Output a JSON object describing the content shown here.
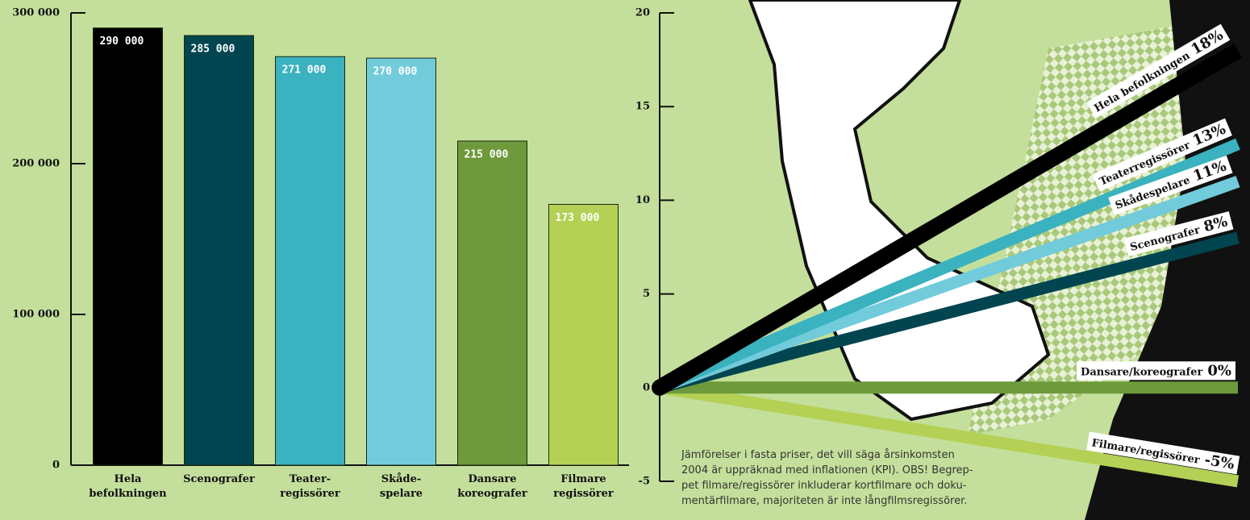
{
  "chart_data": [
    {
      "type": "bar",
      "categories": [
        "Hela\nbefolkningen",
        "Scenografer",
        "Teater-\nregissörer",
        "Skåde-\nspelare",
        "Dansare\nkoreografer",
        "Filmare\nregissörer"
      ],
      "values": [
        290000,
        285000,
        271000,
        270000,
        215000,
        173000
      ],
      "value_labels": [
        "290 000",
        "285 000",
        "271 000",
        "270 000",
        "215 000",
        "173 000"
      ],
      "colors": [
        "#000000",
        "#004550",
        "#3ab2bf",
        "#72cbdb",
        "#6e9a3c",
        "#b4d156"
      ],
      "ylim": [
        0,
        300000
      ],
      "yticks": [
        0,
        {
          "value": 100000,
          "label": "100 000"
        },
        {
          "value": 200000,
          "label": "200 000"
        },
        {
          "value": 300000,
          "label": "300 000"
        }
      ]
    },
    {
      "type": "line",
      "series": [
        {
          "name": "Hela befolkningen",
          "color": "#000000",
          "values": [
            18
          ],
          "value_labels": [
            "18%"
          ]
        },
        {
          "name": "Teaterregissörer",
          "color": "#3ab2bf",
          "values": [
            13
          ],
          "value_labels": [
            "13%"
          ]
        },
        {
          "name": "Skådespelare",
          "color": "#72cbdb",
          "values": [
            11
          ],
          "value_labels": [
            "11%"
          ]
        },
        {
          "name": "Scenografer",
          "color": "#004550",
          "values": [
            8
          ],
          "value_labels": [
            "8%"
          ]
        },
        {
          "name": "Dansare/koreografer",
          "color": "#6e9a3c",
          "values": [
            0
          ],
          "value_labels": [
            "0%"
          ]
        },
        {
          "name": "Filmare/regissörer",
          "color": "#b4d156",
          "values": [
            -5
          ],
          "value_labels": [
            "-5%"
          ]
        }
      ],
      "ylim": [
        -5,
        20
      ],
      "yticks": [
        -5,
        0,
        5,
        10,
        15,
        20
      ],
      "note": [
        "Jämförelser i fasta priser, det vill säga årsinkomsten",
        "2004 är uppräknad med inflationen (KPI). OBS! Begrep-",
        "pet filmare/regissörer inkluderar kortfilmare och doku-",
        "mentärfilmare, majoriteten är inte långfilmsregissörer."
      ]
    }
  ]
}
